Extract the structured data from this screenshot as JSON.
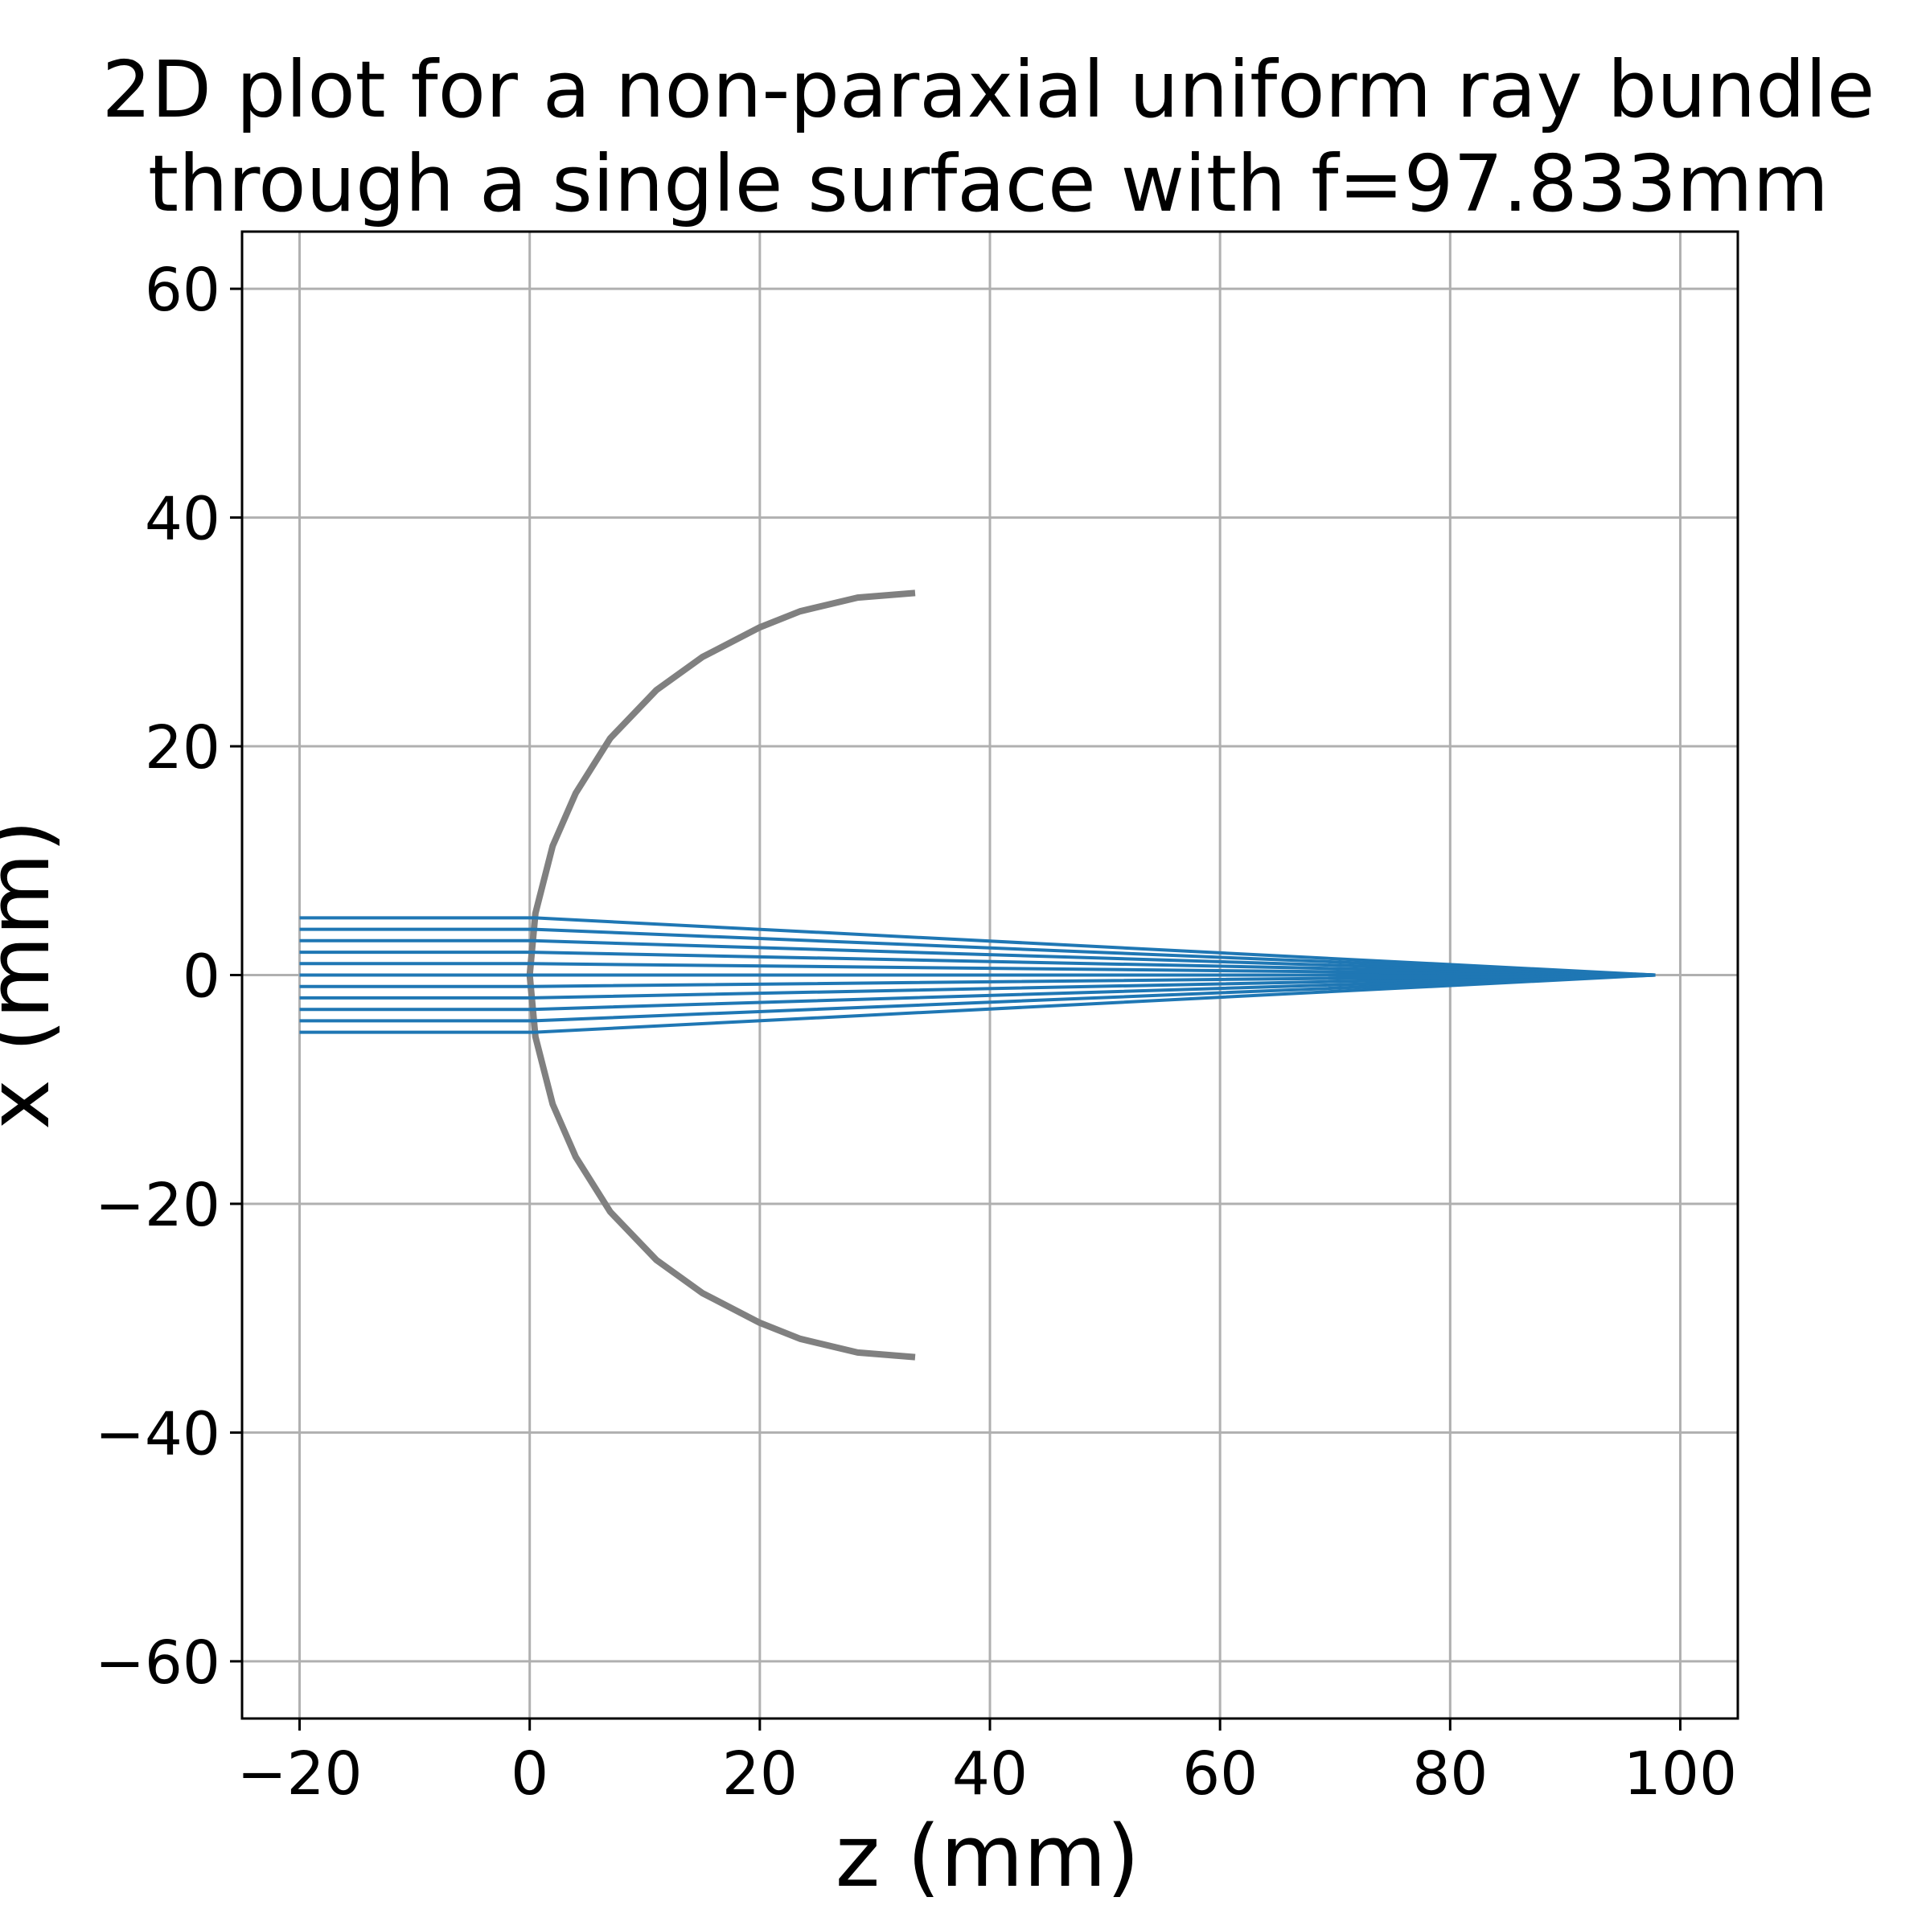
{
  "chart_data": {
    "type": "line",
    "title_lines": [
      "2D plot for a non-paraxial uniform ray bundle",
      "through a single surface with f=97.833mm"
    ],
    "xlabel": "z (mm)",
    "ylabel": "x (mm)",
    "xlim": [
      -25,
      105
    ],
    "ylim": [
      -65,
      65
    ],
    "xticks": [
      -20,
      0,
      20,
      40,
      60,
      80,
      100
    ],
    "yticks": [
      -60,
      -40,
      -20,
      0,
      20,
      40,
      60
    ],
    "xtick_labels": [
      "−20",
      "0",
      "20",
      "40",
      "60",
      "80",
      "100"
    ],
    "ytick_labels": [
      "−60",
      "−40",
      "−20",
      "0",
      "20",
      "40",
      "60"
    ],
    "grid": true,
    "colors": {
      "rays": "#1f77b4",
      "surface": "#808080"
    },
    "focal_point": {
      "z": 97.833,
      "x": 0
    },
    "ray_start_z": -20,
    "ray_heights": [
      -5,
      -4,
      -3,
      -2,
      -1,
      0,
      1,
      2,
      3,
      4,
      5
    ],
    "surface_profile": [
      {
        "z": 33.5,
        "x": -33.4
      },
      {
        "z": 28.5,
        "x": -33.0
      },
      {
        "z": 23.5,
        "x": -31.8
      },
      {
        "z": 20.0,
        "x": -30.4
      },
      {
        "z": 15.0,
        "x": -27.8
      },
      {
        "z": 11.0,
        "x": -24.9
      },
      {
        "z": 7.0,
        "x": -20.7
      },
      {
        "z": 4.0,
        "x": -15.9
      },
      {
        "z": 2.0,
        "x": -11.3
      },
      {
        "z": 0.5,
        "x": -5.4
      },
      {
        "z": 0.0,
        "x": 0.0
      },
      {
        "z": 0.5,
        "x": 5.4
      },
      {
        "z": 2.0,
        "x": 11.3
      },
      {
        "z": 4.0,
        "x": 15.9
      },
      {
        "z": 7.0,
        "x": 20.7
      },
      {
        "z": 11.0,
        "x": 24.9
      },
      {
        "z": 15.0,
        "x": 27.8
      },
      {
        "z": 20.0,
        "x": 30.4
      },
      {
        "z": 23.5,
        "x": 31.8
      },
      {
        "z": 28.5,
        "x": 33.0
      },
      {
        "z": 33.5,
        "x": 33.4
      }
    ]
  }
}
